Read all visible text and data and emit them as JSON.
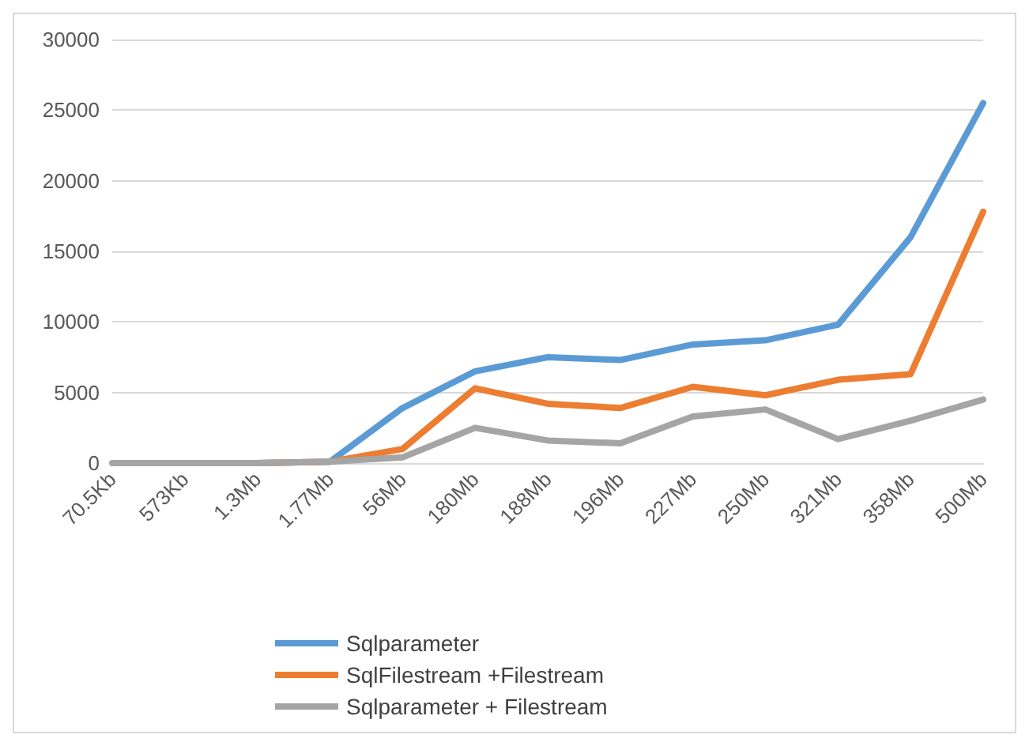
{
  "chart_data": {
    "type": "line",
    "categories": [
      "70.5Kb",
      "573Kb",
      "1.3Mb",
      "1.77Mb",
      "56Mb",
      "180Mb",
      "188Mb",
      "196Mb",
      "227Mb",
      "250Mb",
      "321Mb",
      "358Mb",
      "500Mb"
    ],
    "series": [
      {
        "name": "Sqlparameter",
        "color": "#5b9bd5",
        "values": [
          null,
          null,
          0,
          100,
          3900,
          6500,
          7500,
          7300,
          8400,
          8700,
          9800,
          16000,
          25500
        ]
      },
      {
        "name": "SqlFilestream +Filestream",
        "color": "#ed7d31",
        "values": [
          null,
          null,
          0,
          100,
          1000,
          5300,
          4200,
          3900,
          5400,
          4800,
          5900,
          6300,
          17800
        ]
      },
      {
        "name": "Sqlparameter + Filestream",
        "color": "#a5a5a5",
        "values": [
          0,
          0,
          0,
          100,
          400,
          2500,
          1600,
          1400,
          3300,
          3800,
          1700,
          3000,
          4500
        ]
      }
    ],
    "ylim": [
      0,
      30000
    ],
    "yticks": [
      0,
      5000,
      10000,
      15000,
      20000,
      25000,
      30000
    ],
    "grid": "y",
    "legend": "bottom",
    "marker": "none",
    "line_style": "solid"
  }
}
